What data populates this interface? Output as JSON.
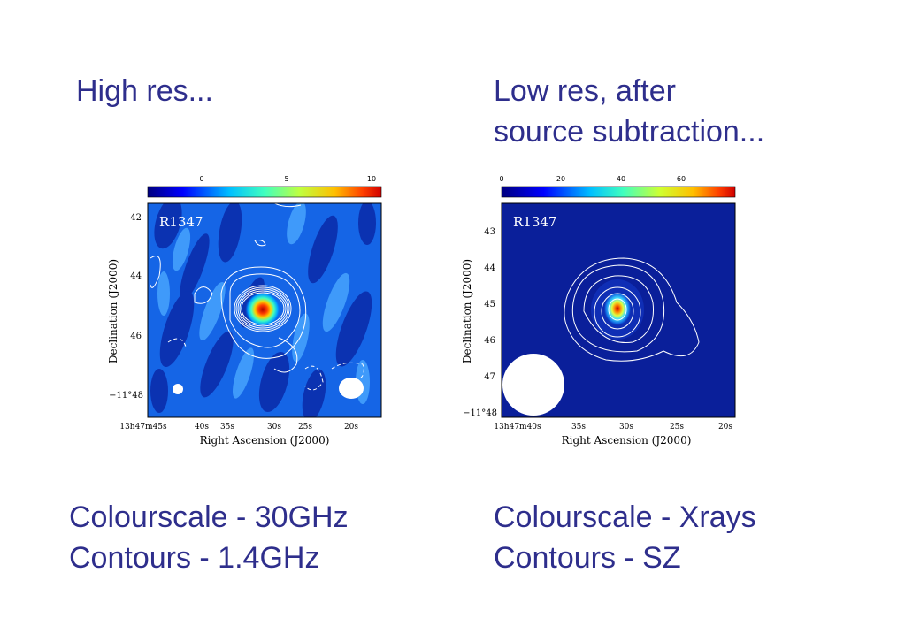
{
  "left": {
    "heading": "High res...",
    "caption_line1": "Colourscale - 30GHz",
    "caption_line2": "Contours - 1.4GHz",
    "panel": {
      "object_label": "R1347",
      "colorbar_ticks": [
        "0",
        "5",
        "10"
      ],
      "dec_ticks": [
        "42",
        "44",
        "46",
        "−11°48"
      ],
      "ra_ticks": [
        "13h47m45s",
        "40s",
        "35s",
        "30s",
        "25s",
        "20s"
      ],
      "xlabel": "Right Ascension (J2000)",
      "ylabel": "Declination (J2000)"
    }
  },
  "right": {
    "heading_line1": "Low res, after",
    "heading_line2": "source subtraction...",
    "caption_line1": "Colourscale - Xrays",
    "caption_line2": "Contours - SZ",
    "panel": {
      "object_label": "R1347",
      "colorbar_ticks": [
        "0",
        "20",
        "40",
        "60"
      ],
      "dec_ticks": [
        "43",
        "44",
        "45",
        "46",
        "47",
        "−11°48"
      ],
      "ra_ticks": [
        "13h47m40s",
        "35s",
        "30s",
        "25s",
        "20s"
      ],
      "xlabel": "Right Ascension (J2000)",
      "ylabel": "Declination (J2000)"
    }
  },
  "colors": {
    "text": "#2e2e8c",
    "map_dark": "#0a1f9a",
    "map_light": "#2f8ff0"
  }
}
